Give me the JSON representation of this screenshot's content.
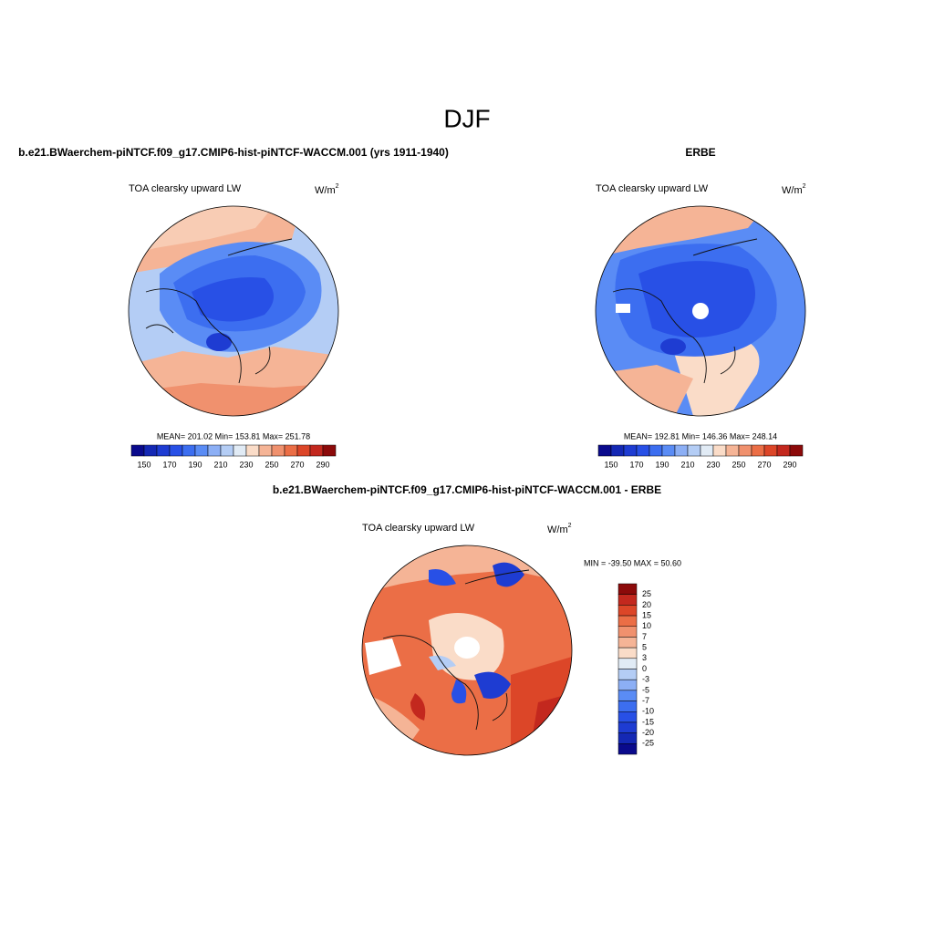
{
  "title": "DJF",
  "panels": [
    {
      "title": "b.e21.BWaerchem-piNTCF.f09_g17.CMIP6-hist-piNTCF-WACCM.001 (yrs 1911-1940)",
      "subtitle": "TOA clearsky upward LW",
      "units": {
        "base": "W/m",
        "sup": "2"
      },
      "stats": "MEAN= 201.02  Min= 153.81  Max= 251.78",
      "colorbar": {
        "labels": [
          "150",
          "170",
          "190",
          "210",
          "230",
          "250",
          "270",
          "290"
        ],
        "colors": [
          "#0a0a8c",
          "#1428b4",
          "#1e3cd2",
          "#2850e6",
          "#3c6ef0",
          "#5a8cf5",
          "#8caff5",
          "#b4cdf5",
          "#e1ebf5",
          "#fadcc8",
          "#f5b496",
          "#f0916e",
          "#eb6e46",
          "#dc4628",
          "#c3281e",
          "#8c0a0a"
        ]
      }
    },
    {
      "title": "ERBE",
      "subtitle": "TOA clearsky upward LW",
      "units": {
        "base": "W/m",
        "sup": "2"
      },
      "stats": "MEAN= 192.81  Min= 146.36  Max= 248.14",
      "colorbar": {
        "labels": [
          "150",
          "170",
          "190",
          "210",
          "230",
          "250",
          "270",
          "290"
        ],
        "colors": [
          "#0a0a8c",
          "#1428b4",
          "#1e3cd2",
          "#2850e6",
          "#3c6ef0",
          "#5a8cf5",
          "#8caff5",
          "#b4cdf5",
          "#e1ebf5",
          "#fadcc8",
          "#f5b496",
          "#f0916e",
          "#eb6e46",
          "#dc4628",
          "#c3281e",
          "#8c0a0a"
        ]
      }
    },
    {
      "title": "b.e21.BWaerchem-piNTCF.f09_g17.CMIP6-hist-piNTCF-WACCM.001 - ERBE",
      "subtitle": "TOA clearsky upward LW",
      "units": {
        "base": "W/m",
        "sup": "2"
      },
      "stats": "MIN = -39.50 MAX =  50.60",
      "colorbar": {
        "labels": [
          "25",
          "20",
          "15",
          "10",
          "7",
          "5",
          "3",
          "0",
          "-3",
          "-5",
          "-7",
          "-10",
          "-15",
          "-20",
          "-25"
        ],
        "colors": [
          "#8c0a0a",
          "#c3281e",
          "#dc4628",
          "#eb6e46",
          "#f0916e",
          "#f5b496",
          "#fadcc8",
          "#e1ebf5",
          "#b4cdf5",
          "#8caff5",
          "#5a8cf5",
          "#3c6ef0",
          "#2850e6",
          "#1e3cd2",
          "#1428b4",
          "#0a0a8c"
        ]
      }
    }
  ]
}
